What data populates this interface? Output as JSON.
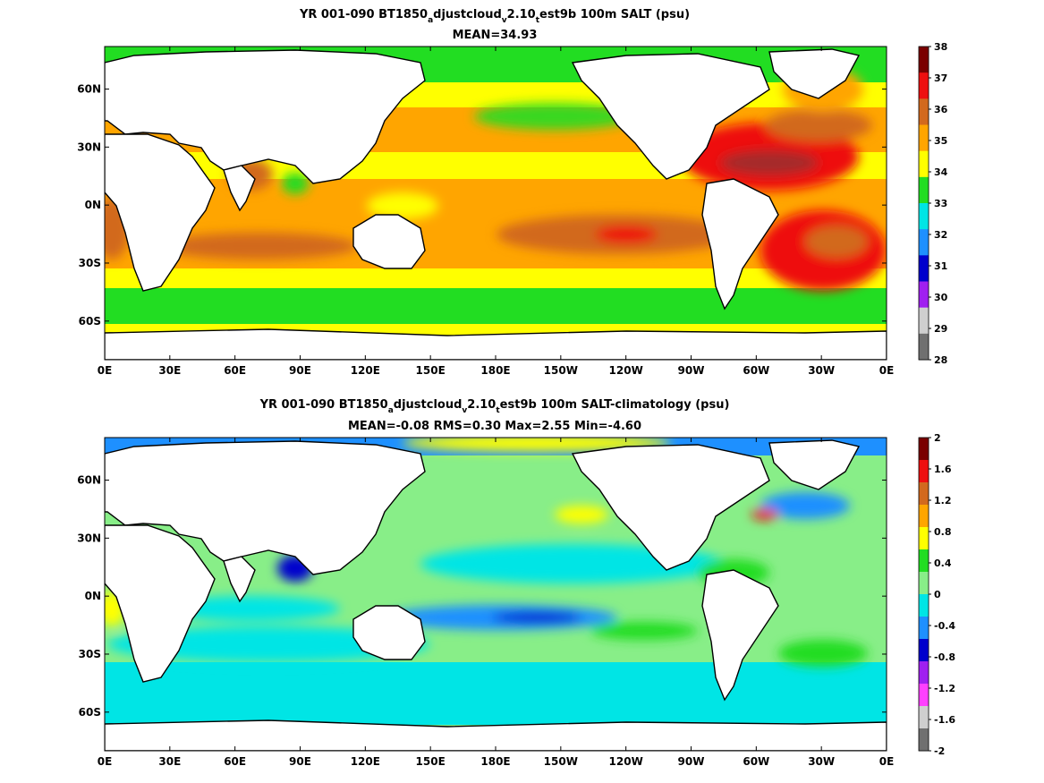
{
  "chart_data": [
    {
      "type": "heatmap",
      "title_parts": [
        "YR 001-090 BT1850",
        "a",
        "djustcloud",
        "v",
        "2.10",
        "t",
        "est9b 100m SALT (psu)"
      ],
      "subtitle": "MEAN=34.93",
      "xlabel": "",
      "ylabel": "",
      "xticks": [
        "0E",
        "30E",
        "60E",
        "90E",
        "120E",
        "150E",
        "180E",
        "150W",
        "120W",
        "90W",
        "60W",
        "30W",
        "0E"
      ],
      "yticks": [
        "60N",
        "30N",
        "0N",
        "30S",
        "60S"
      ],
      "xlim": [
        0,
        360
      ],
      "ylim": [
        -80,
        82
      ],
      "colorbar": {
        "ticks": [
          "38",
          "37",
          "36",
          "35",
          "34",
          "33",
          "32",
          "31",
          "30",
          "29",
          "28"
        ],
        "colors": [
          "#7a0000",
          "#ee1010",
          "#d2691e",
          "#ffa500",
          "#ffff00",
          "#22dd22",
          "#00e5e5",
          "#1e90ff",
          "#0000cd",
          "#a020f0",
          "#cfcfcf",
          "#707070"
        ]
      },
      "mean": 34.93
    },
    {
      "type": "heatmap",
      "title_parts": [
        "YR 001-090 BT1850",
        "a",
        "djustcloud",
        "v",
        "2.10",
        "t",
        "est9b 100m SALT-climatology (psu)"
      ],
      "subtitle": "MEAN=-0.08   RMS=0.30   Max=2.55   Min=-4.60",
      "xlabel": "",
      "ylabel": "",
      "xticks": [
        "0E",
        "30E",
        "60E",
        "90E",
        "120E",
        "150E",
        "180E",
        "150W",
        "120W",
        "90W",
        "60W",
        "30W",
        "0E"
      ],
      "yticks": [
        "60N",
        "30N",
        "0N",
        "30S",
        "60S"
      ],
      "xlim": [
        0,
        360
      ],
      "ylim": [
        -80,
        82
      ],
      "colorbar": {
        "ticks": [
          "2",
          "1.6",
          "1.2",
          "0.8",
          "0.4",
          "0",
          "-0.4",
          "-0.8",
          "-1.2",
          "-1.6",
          "-2"
        ],
        "colors": [
          "#7a0000",
          "#ee1010",
          "#d2691e",
          "#ffa500",
          "#ffff00",
          "#22dd22",
          "#88ee88",
          "#00e5e5",
          "#1e90ff",
          "#0000cd",
          "#a020f0",
          "#ff40ff",
          "#cfcfcf",
          "#707070"
        ]
      },
      "mean": -0.08,
      "rms": 0.3,
      "max": 2.55,
      "min": -4.6
    }
  ]
}
